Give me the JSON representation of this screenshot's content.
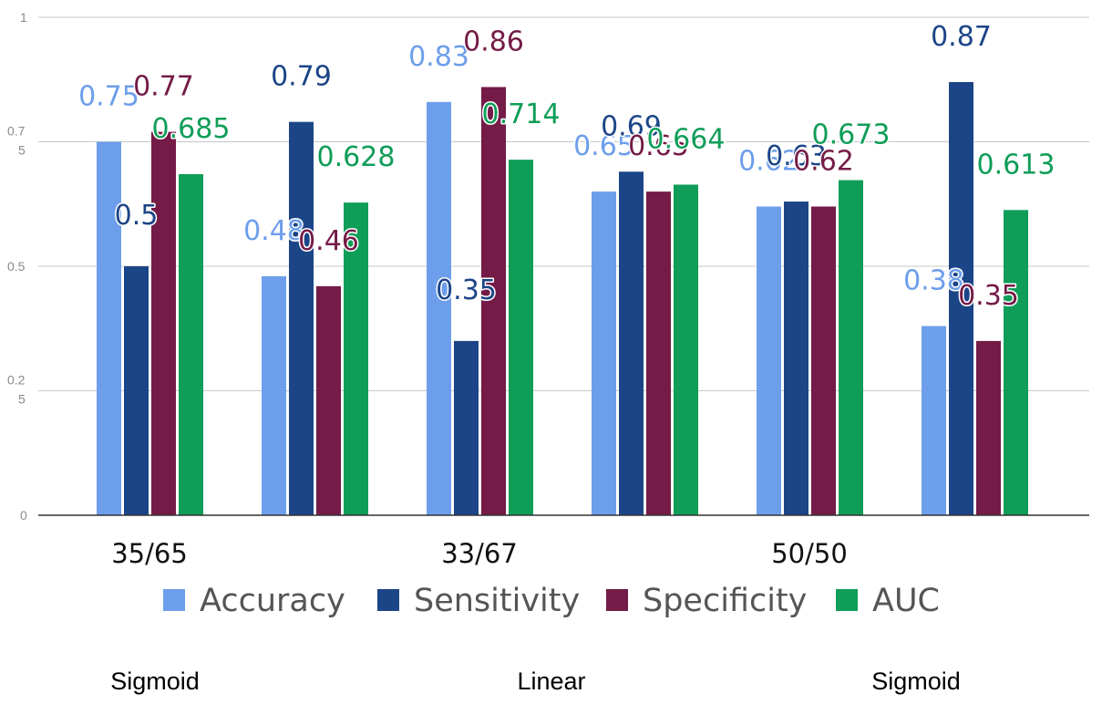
{
  "chart_data": {
    "type": "bar",
    "categories": [
      "35/65 Sigmoid",
      "35/65 Linear",
      "33/67 Sigmoid",
      "33/67 Linear",
      "50/50 Sigmoid",
      "50/50 Linear"
    ],
    "group_labels": [
      "35/65",
      "33/67",
      "50/50"
    ],
    "kernel_labels": [
      "Sigmoid",
      "Linear",
      "Sigmoid"
    ],
    "series": [
      {
        "name": "Accuracy",
        "color": "#6d9eeb",
        "values": [
          0.75,
          0.48,
          0.83,
          0.65,
          0.62,
          0.38
        ],
        "labels": [
          "0.75",
          "0.48",
          "0.83",
          "0.65",
          "0.62",
          "0.38"
        ]
      },
      {
        "name": "Sensitivity",
        "color": "#1c4587",
        "values": [
          0.5,
          0.79,
          0.35,
          0.69,
          0.63,
          0.87
        ],
        "labels": [
          "0.5",
          "0.79",
          "0.35",
          "0.69",
          "0.63",
          "0.87"
        ]
      },
      {
        "name": "Specificity",
        "color": "#741b47",
        "values": [
          0.77,
          0.46,
          0.86,
          0.65,
          0.62,
          0.35
        ],
        "labels": [
          "0.77",
          "0.46",
          "0.86",
          "0.65",
          "0.62",
          "0.35"
        ]
      },
      {
        "name": "AUC",
        "color": "#0f9d58",
        "values": [
          0.685,
          0.628,
          0.714,
          0.664,
          0.673,
          0.613
        ],
        "labels": [
          "0.685",
          "0.628",
          "0.714",
          "0.664",
          "0.673",
          "0.613"
        ]
      }
    ],
    "y_ticks": [
      {
        "value": 0,
        "label": "0"
      },
      {
        "value": 0.25,
        "label": "0.25"
      },
      {
        "value": 0.5,
        "label": "0.5"
      },
      {
        "value": 0.75,
        "label": "0.75"
      },
      {
        "value": 1,
        "label": "1"
      }
    ],
    "ylim": [
      0,
      1
    ],
    "grid": true,
    "legend_position": "bottom"
  }
}
